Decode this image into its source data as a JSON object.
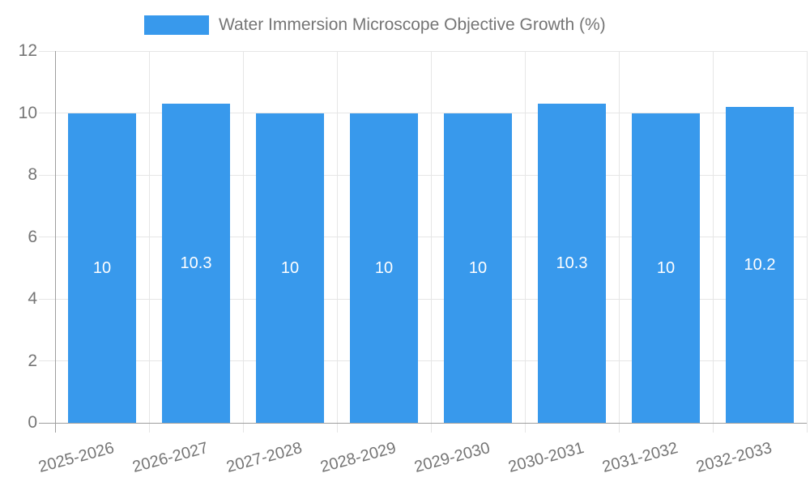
{
  "chart_data": {
    "type": "bar",
    "title": "Water Immersion Microscope Objective Growth (%)",
    "categories": [
      "2025-2026",
      "2026-2027",
      "2027-2028",
      "2028-2029",
      "2029-2030",
      "2030-2031",
      "2031-2032",
      "2032-2033"
    ],
    "series": [
      {
        "name": "Water Immersion Microscope Objective Growth (%)",
        "values": [
          10,
          10.3,
          10,
          10,
          10,
          10.3,
          10,
          10.2
        ],
        "value_labels": [
          "10",
          "10.3",
          "10",
          "10",
          "10",
          "10.3",
          "10",
          "10.2"
        ]
      }
    ],
    "xlabel": "",
    "ylabel": "",
    "ylim": [
      0,
      12
    ],
    "yticks": [
      0,
      2,
      4,
      6,
      8,
      10,
      12
    ],
    "ytick_labels": [
      "0",
      "2",
      "4",
      "6",
      "8",
      "10",
      "12"
    ],
    "grid": true,
    "legend_position": "top",
    "bar_label_position": "center-inside",
    "colors": {
      "bar": "#3899ec",
      "bar_label": "#ffffff",
      "gridline": "#e6e6e6",
      "axis_line": "#9e9e9e",
      "text": "#757575",
      "background": "#ffffff"
    }
  }
}
